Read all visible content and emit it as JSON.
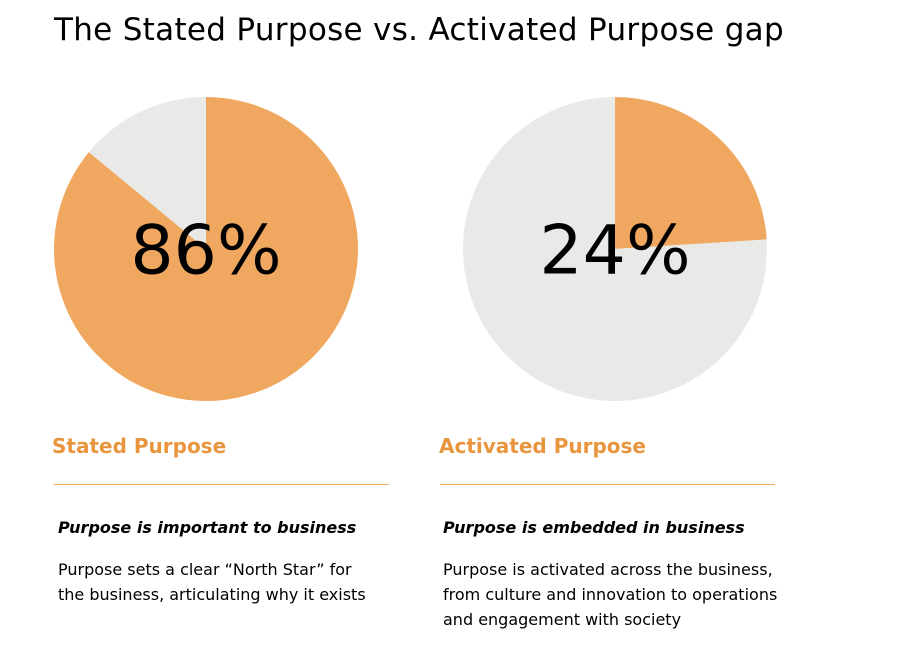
{
  "page_title": "The Stated Purpose vs. Activated Purpose gap",
  "colors": {
    "accent": "#f0a861",
    "remainder": "#e9e9e8",
    "heading": "#e8953e"
  },
  "sections": [
    {
      "heading": "Stated Purpose",
      "subheading": "Purpose is important to business",
      "body_line1": "Purpose sets a clear “North Star” for",
      "body_line2": "the business, articulating why it exists",
      "body_line3": ""
    },
    {
      "heading": "Activated Purpose",
      "subheading": "Purpose is embedded in business",
      "body_line1": "Purpose is activated across the business,",
      "body_line2": "from culture and innovation to operations",
      "body_line3": "and engagement with society"
    }
  ],
  "chart_data": [
    {
      "type": "pie",
      "title": "",
      "center_label": "86%",
      "slices": [
        {
          "label": "Stated Purpose",
          "value": 86,
          "color": "#f0a861"
        },
        {
          "label": "",
          "value": 14,
          "color": "#e9e9e8"
        }
      ]
    },
    {
      "type": "pie",
      "title": "",
      "center_label": "24%",
      "slices": [
        {
          "label": "Activated Purpose",
          "value": 24,
          "color": "#f0a861"
        },
        {
          "label": "",
          "value": 76,
          "color": "#e9e9e8"
        }
      ]
    }
  ]
}
